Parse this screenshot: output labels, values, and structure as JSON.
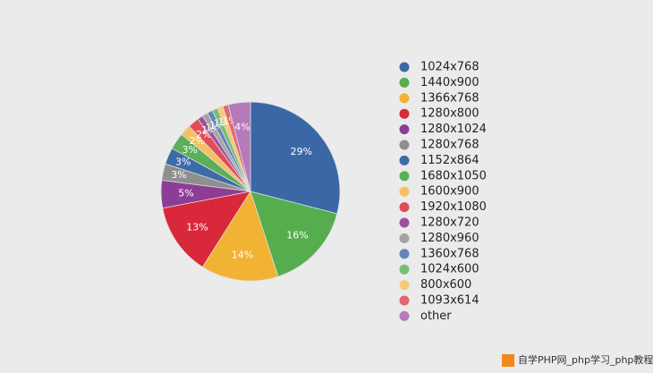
{
  "chart_data": {
    "type": "pie",
    "categories": [
      "1024x768",
      "1440x900",
      "1366x768",
      "1280x800",
      "1280x1024",
      "1280x768",
      "1152x864",
      "1680x1050",
      "1600x900",
      "1920x1080",
      "1280x720",
      "1280x960",
      "1360x768",
      "1024x600",
      "800x600",
      "1093x614",
      "other"
    ],
    "values": [
      29,
      16,
      14,
      13,
      5,
      3,
      3,
      3,
      2,
      2,
      1,
      1,
      1,
      1,
      1,
      1,
      4
    ],
    "value_labels": [
      "29%",
      "16%",
      "14%",
      "13%",
      "5%",
      "3%",
      "3%",
      "3%",
      "2%",
      "2%",
      "1%",
      "1%",
      "1%",
      "1%",
      "1%",
      "1%",
      "4%"
    ],
    "colors": [
      "#3a68a6",
      "#55ad4e",
      "#f2b233",
      "#d9283a",
      "#8e3d96",
      "#8f8f8f",
      "#3d6ba8",
      "#5aaf57",
      "#f4c061",
      "#e04d59",
      "#9b519f",
      "#a3a3a3",
      "#6486bd",
      "#79bd72",
      "#f6ca74",
      "#e36670",
      "#b57ab9"
    ]
  },
  "watermark": "自学PHP网_php学习_php教程"
}
